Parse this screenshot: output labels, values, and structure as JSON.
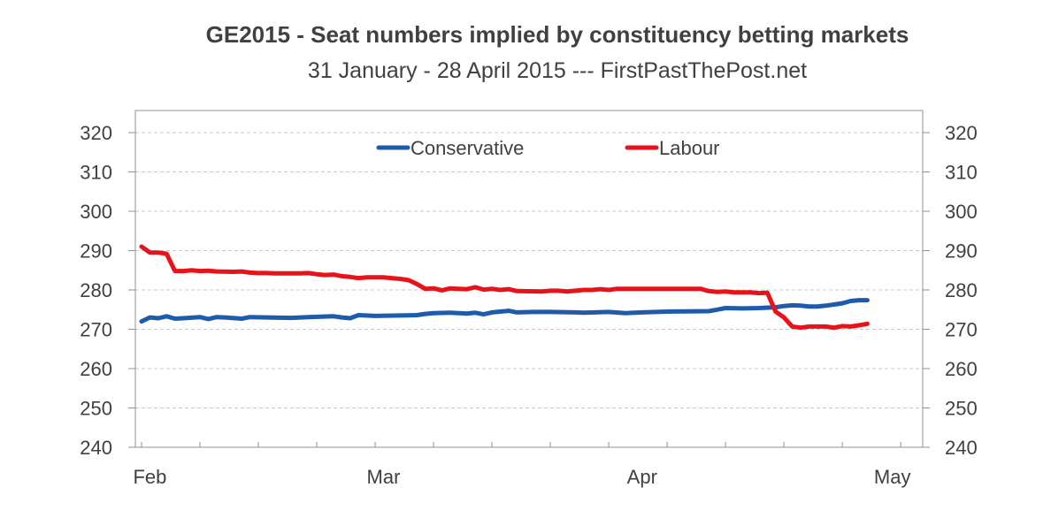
{
  "chart_data": {
    "type": "line",
    "title": "GE2015 - Seat numbers implied by constituency betting markets",
    "subtitle": "31 January - 28 April 2015 --- FirstPastThePost.net",
    "xlabel": "",
    "ylabel": "",
    "x_tick_labels": [
      "Feb",
      "Mar",
      "Apr",
      "May"
    ],
    "x_tick_dates": [
      "2015-02-01",
      "2015-03-01",
      "2015-04-01",
      "2015-05-01"
    ],
    "xlim": [
      "2015-01-31",
      "2015-05-04"
    ],
    "y_ticks": [
      "240",
      "250",
      "260",
      "270",
      "280",
      "290",
      "300",
      "310",
      "320"
    ],
    "ylim": [
      240,
      322
    ],
    "grid": "horizontal dashed",
    "axes": "left and right, same scale",
    "legend": "top-center",
    "series": [
      {
        "name": "Conservative",
        "color": "#1f5bab",
        "points": [
          [
            "2015-01-31",
            272
          ],
          [
            "2015-02-01",
            273
          ],
          [
            "2015-02-02",
            272.8
          ],
          [
            "2015-02-03",
            273.3
          ],
          [
            "2015-02-04",
            272.7
          ],
          [
            "2015-02-05",
            272.8
          ],
          [
            "2015-02-07",
            273.1
          ],
          [
            "2015-02-08",
            272.6
          ],
          [
            "2015-02-09",
            273.1
          ],
          [
            "2015-02-10",
            273
          ],
          [
            "2015-02-12",
            272.7
          ],
          [
            "2015-02-13",
            273.1
          ],
          [
            "2015-02-15",
            273
          ],
          [
            "2015-02-18",
            272.9
          ],
          [
            "2015-02-20",
            273.1
          ],
          [
            "2015-02-23",
            273.3
          ],
          [
            "2015-02-24",
            273
          ],
          [
            "2015-02-25",
            272.8
          ],
          [
            "2015-02-26",
            273.6
          ],
          [
            "2015-02-28",
            273.4
          ],
          [
            "2015-03-03",
            273.5
          ],
          [
            "2015-03-05",
            273.6
          ],
          [
            "2015-03-06",
            273.9
          ],
          [
            "2015-03-07",
            274.1
          ],
          [
            "2015-03-09",
            274.2
          ],
          [
            "2015-03-11",
            274
          ],
          [
            "2015-03-12",
            274.2
          ],
          [
            "2015-03-13",
            273.8
          ],
          [
            "2015-03-14",
            274.3
          ],
          [
            "2015-03-16",
            274.7
          ],
          [
            "2015-03-17",
            274.3
          ],
          [
            "2015-03-19",
            274.4
          ],
          [
            "2015-03-21",
            274.4
          ],
          [
            "2015-03-24",
            274.3
          ],
          [
            "2015-03-25",
            274.2
          ],
          [
            "2015-03-28",
            274.4
          ],
          [
            "2015-03-30",
            274.1
          ],
          [
            "2015-04-01",
            274.3
          ],
          [
            "2015-04-04",
            274.5
          ],
          [
            "2015-04-09",
            274.6
          ],
          [
            "2015-04-10",
            275
          ],
          [
            "2015-04-11",
            275.4
          ],
          [
            "2015-04-13",
            275.3
          ],
          [
            "2015-04-15",
            275.4
          ],
          [
            "2015-04-17",
            275.6
          ],
          [
            "2015-04-18",
            275.9
          ],
          [
            "2015-04-19",
            276.1
          ],
          [
            "2015-04-20",
            276
          ],
          [
            "2015-04-21",
            275.8
          ],
          [
            "2015-04-22",
            275.8
          ],
          [
            "2015-04-23",
            276
          ],
          [
            "2015-04-24",
            276.3
          ],
          [
            "2015-04-25",
            276.6
          ],
          [
            "2015-04-26",
            277.2
          ],
          [
            "2015-04-27",
            277.4
          ],
          [
            "2015-04-28",
            277.4
          ]
        ]
      },
      {
        "name": "Labour",
        "color": "#e8121a",
        "points": [
          [
            "2015-01-31",
            291
          ],
          [
            "2015-02-01",
            289.5
          ],
          [
            "2015-02-02",
            289.5
          ],
          [
            "2015-02-03",
            289.2
          ],
          [
            "2015-02-04",
            284.8
          ],
          [
            "2015-02-05",
            284.8
          ],
          [
            "2015-02-06",
            285
          ],
          [
            "2015-02-07",
            284.8
          ],
          [
            "2015-02-08",
            284.9
          ],
          [
            "2015-02-09",
            284.7
          ],
          [
            "2015-02-11",
            284.6
          ],
          [
            "2015-02-12",
            284.7
          ],
          [
            "2015-02-13",
            284.4
          ],
          [
            "2015-02-14",
            284.3
          ],
          [
            "2015-02-15",
            284.3
          ],
          [
            "2015-02-16",
            284.2
          ],
          [
            "2015-02-19",
            284.2
          ],
          [
            "2015-02-20",
            284.3
          ],
          [
            "2015-02-21",
            284
          ],
          [
            "2015-02-22",
            283.8
          ],
          [
            "2015-02-23",
            283.9
          ],
          [
            "2015-02-24",
            283.5
          ],
          [
            "2015-02-25",
            283.3
          ],
          [
            "2015-02-26",
            283
          ],
          [
            "2015-02-27",
            283.2
          ],
          [
            "2015-03-01",
            283.2
          ],
          [
            "2015-03-02",
            283
          ],
          [
            "2015-03-03",
            282.8
          ],
          [
            "2015-03-04",
            282.5
          ],
          [
            "2015-03-05",
            281.5
          ],
          [
            "2015-03-06",
            280.3
          ],
          [
            "2015-03-07",
            280.4
          ],
          [
            "2015-03-08",
            279.9
          ],
          [
            "2015-03-09",
            280.4
          ],
          [
            "2015-03-10",
            280.3
          ],
          [
            "2015-03-11",
            280.2
          ],
          [
            "2015-03-12",
            280.7
          ],
          [
            "2015-03-13",
            280.1
          ],
          [
            "2015-03-14",
            280.3
          ],
          [
            "2015-03-15",
            280
          ],
          [
            "2015-03-16",
            280.2
          ],
          [
            "2015-03-17",
            279.7
          ],
          [
            "2015-03-20",
            279.6
          ],
          [
            "2015-03-21",
            279.8
          ],
          [
            "2015-03-22",
            279.8
          ],
          [
            "2015-03-23",
            279.6
          ],
          [
            "2015-03-24",
            279.8
          ],
          [
            "2015-03-25",
            280
          ],
          [
            "2015-03-26",
            280
          ],
          [
            "2015-03-27",
            280.2
          ],
          [
            "2015-03-28",
            280
          ],
          [
            "2015-03-29",
            280.3
          ],
          [
            "2015-04-08",
            280.3
          ],
          [
            "2015-04-09",
            279.7
          ],
          [
            "2015-04-10",
            279.5
          ],
          [
            "2015-04-11",
            279.6
          ],
          [
            "2015-04-12",
            279.4
          ],
          [
            "2015-04-14",
            279.4
          ],
          [
            "2015-04-15",
            279.2
          ],
          [
            "2015-04-16",
            279.3
          ],
          [
            "2015-04-17",
            274.5
          ],
          [
            "2015-04-18",
            273
          ],
          [
            "2015-04-19",
            270.7
          ],
          [
            "2015-04-20",
            270.4
          ],
          [
            "2015-04-21",
            270.7
          ],
          [
            "2015-04-23",
            270.7
          ],
          [
            "2015-04-24",
            270.4
          ],
          [
            "2015-04-25",
            270.8
          ],
          [
            "2015-04-26",
            270.7
          ],
          [
            "2015-04-27",
            271
          ],
          [
            "2015-04-28",
            271.4
          ]
        ]
      }
    ]
  }
}
